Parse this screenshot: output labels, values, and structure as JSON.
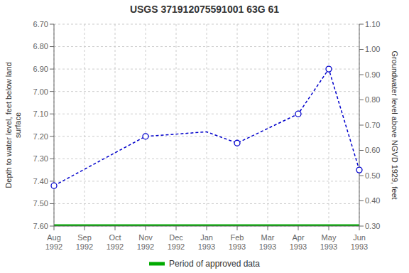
{
  "chart_data": {
    "type": "line",
    "title": "USGS 371912075591001 63G 61",
    "categories": [
      "Aug\n1992",
      "Sep\n1992",
      "Oct\n1992",
      "Nov\n1992",
      "Dec\n1992",
      "Jan\n1993",
      "Feb\n1993",
      "Mar\n1993",
      "Apr\n1993",
      "May\n1993",
      "Jun\n1993"
    ],
    "series": [
      {
        "type": "line",
        "color": "#0000cc",
        "line_style": "dashed",
        "marker": "none",
        "values": [
          7.42,
          null,
          null,
          7.2,
          null,
          7.18,
          7.23,
          null,
          7.1,
          6.9,
          7.35
        ]
      },
      {
        "type": "scatter",
        "color": "#0000cc",
        "marker": "circle",
        "values": [
          7.42,
          null,
          null,
          7.2,
          null,
          null,
          7.23,
          null,
          7.1,
          6.9,
          7.35
        ]
      },
      {
        "name": "Period of approved data",
        "type": "line",
        "color": "#00aa00",
        "line_style": "solid",
        "marker": "none",
        "values": [
          7.6,
          7.6,
          7.6,
          7.6,
          7.6,
          7.6,
          7.6,
          7.6,
          7.6,
          7.6,
          7.6
        ]
      }
    ],
    "ylabel": "Depth to water level, feet below land\nsurface",
    "y2label": "Groundwater level above NGVD 1929, feet",
    "ylim": [
      7.6,
      6.7
    ],
    "yticks": [
      {
        "value": 6.7,
        "label": "6.70"
      },
      {
        "value": 6.8,
        "label": "6.80"
      },
      {
        "value": 6.9,
        "label": "6.90"
      },
      {
        "value": 7.0,
        "label": "7.00"
      },
      {
        "value": 7.1,
        "label": "7.10"
      },
      {
        "value": 7.2,
        "label": "7.20"
      },
      {
        "value": 7.3,
        "label": "7.30"
      },
      {
        "value": 7.4,
        "label": "7.40"
      },
      {
        "value": 7.5,
        "label": "7.50"
      },
      {
        "value": 7.6,
        "label": "7.60"
      }
    ],
    "y2lim": [
      0.3,
      1.1
    ],
    "y2ticks": [
      {
        "value": 0.3,
        "label": "0.30"
      },
      {
        "value": 0.4,
        "label": "0.40"
      },
      {
        "value": 0.5,
        "label": "0.50"
      },
      {
        "value": 0.6,
        "label": "0.60"
      },
      {
        "value": 0.7,
        "label": "0.70"
      },
      {
        "value": 0.8,
        "label": "0.80"
      },
      {
        "value": 0.9,
        "label": "0.90"
      },
      {
        "value": 1.0,
        "label": "1.00"
      },
      {
        "value": 1.1,
        "label": "1.10"
      }
    ],
    "grid": true,
    "legend": "bottom"
  }
}
